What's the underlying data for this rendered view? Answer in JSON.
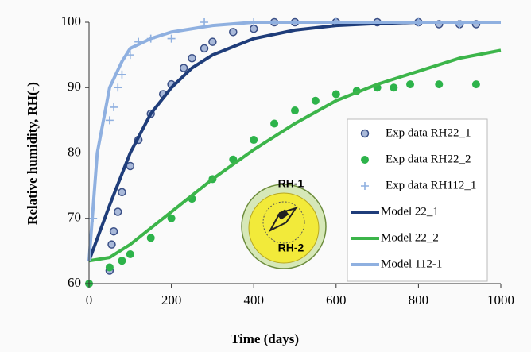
{
  "chart_data": {
    "type": "scatter-line",
    "xlabel": "Time (days)",
    "ylabel": "Relative humidity, RH(-)",
    "xlim": [
      0,
      1000
    ],
    "xticks": [
      0,
      200,
      400,
      600,
      800,
      1000
    ],
    "ylim": [
      60,
      100
    ],
    "yticks": [
      60,
      70,
      80,
      90,
      100
    ],
    "grid": false,
    "legend": "right",
    "annotations": [
      "RH-1",
      "RH-2"
    ],
    "series": [
      {
        "name": "Exp data RH22_1",
        "color": "#a9b9d9",
        "marker": "circle",
        "x": [
          50,
          55,
          60,
          70,
          80,
          100,
          120,
          150,
          180,
          200,
          230,
          250,
          280,
          300,
          350,
          400,
          450,
          500,
          600,
          700,
          800,
          850,
          900,
          940
        ],
        "values": [
          62,
          66,
          68,
          71,
          74,
          78,
          82,
          86,
          89,
          90.5,
          93,
          94.5,
          96,
          97,
          98.5,
          99,
          100,
          100,
          100,
          100,
          100,
          99.7,
          99.7,
          99.7
        ]
      },
      {
        "name": "Exp data RH22_2",
        "color": "#2db34a",
        "marker": "dot",
        "x": [
          0,
          50,
          80,
          100,
          150,
          200,
          250,
          300,
          350,
          400,
          450,
          500,
          550,
          600,
          650,
          700,
          740,
          780,
          850,
          940
        ],
        "values": [
          60,
          62.5,
          63.5,
          64.5,
          67,
          70,
          73,
          76,
          79,
          82,
          84.5,
          86.5,
          88,
          89,
          89.5,
          90,
          90,
          90.5,
          90.5,
          90.5
        ]
      },
      {
        "name": "Exp data RH112_1",
        "color": "#8fb0e0",
        "marker": "plus",
        "x": [
          10,
          50,
          60,
          70,
          80,
          100,
          120,
          150,
          200,
          280,
          400,
          600,
          800,
          900
        ],
        "values": [
          70,
          85,
          87,
          90,
          92,
          95,
          97,
          97.5,
          97.5,
          100,
          100,
          100,
          100,
          99.7
        ]
      },
      {
        "name": "Model 22_1",
        "color": "#1f3d7a",
        "marker": "line",
        "x": [
          0,
          50,
          100,
          150,
          200,
          250,
          300,
          400,
          500,
          600,
          700,
          800,
          980
        ],
        "values": [
          63.5,
          72,
          80,
          86,
          90,
          93,
          95,
          97.5,
          98.8,
          99.5,
          99.8,
          100,
          100
        ]
      },
      {
        "name": "Model 22_2",
        "color": "#3cb54a",
        "marker": "line",
        "x": [
          0,
          50,
          100,
          200,
          300,
          400,
          500,
          600,
          700,
          800,
          900,
          1000
        ],
        "values": [
          63.5,
          64,
          66,
          71,
          76,
          80.5,
          84.5,
          88,
          90.5,
          92.5,
          94.5,
          95.7
        ]
      },
      {
        "name": "Model 112-1",
        "color": "#8fb0e0",
        "marker": "line",
        "x": [
          0,
          20,
          50,
          80,
          100,
          150,
          200,
          300,
          400,
          1000
        ],
        "values": [
          63.5,
          80,
          90,
          94,
          96,
          97.5,
          98.5,
          99.5,
          100,
          100
        ]
      }
    ]
  }
}
